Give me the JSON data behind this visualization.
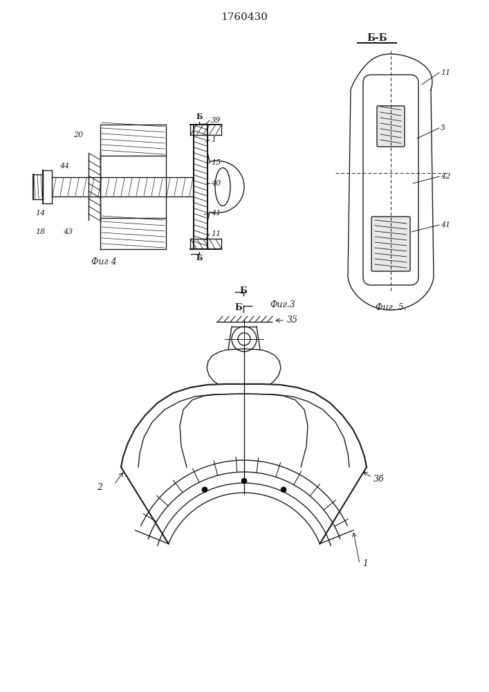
{
  "title": "1760430",
  "background_color": "#ffffff",
  "line_color": "#1a1a1a",
  "fig3_label": "Фиг.3",
  "fig4_label": "Фиг 4",
  "fig5_label": "Фиг. 5.",
  "section_label": "Б-Б",
  "b_char": "Б",
  "label1": "1",
  "label2": "2",
  "label3b": "3б",
  "label5": "5",
  "label11": "11",
  "label14": "14",
  "label15": "15",
  "label18": "18",
  "label20": "20",
  "label35": "35",
  "label39": "39",
  "label40": "40",
  "label41": "41",
  "label42": "42",
  "label43": "43",
  "label44": "44"
}
